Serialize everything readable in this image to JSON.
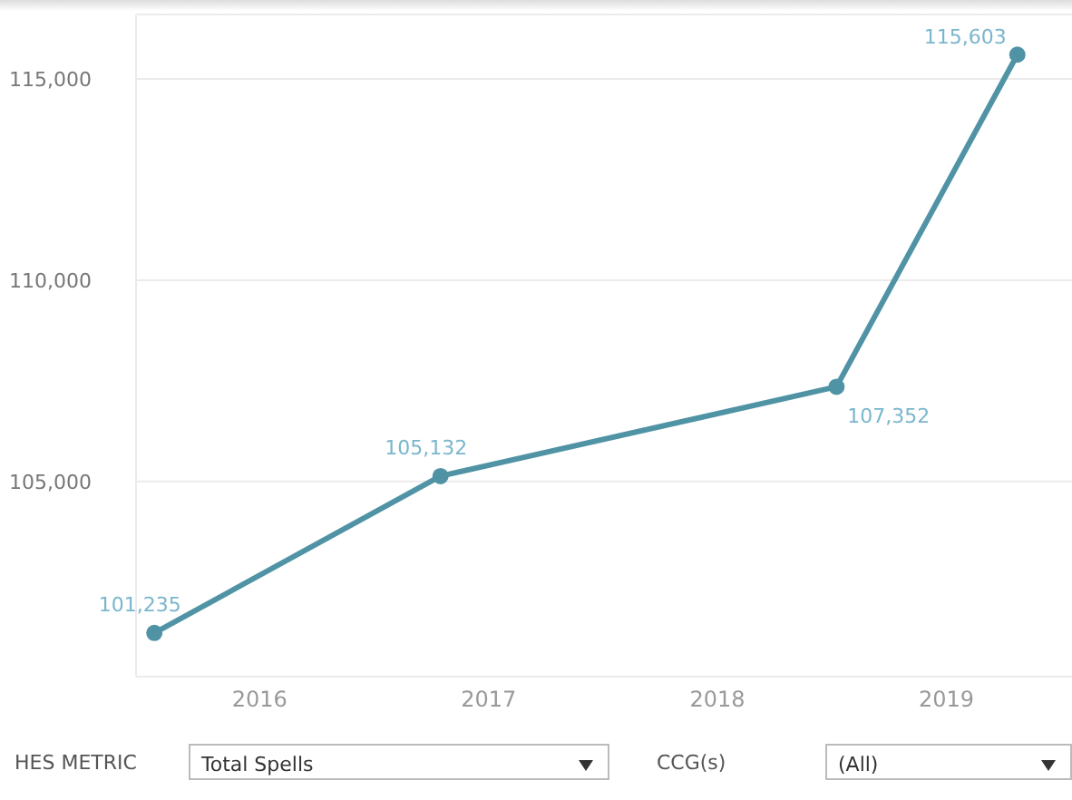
{
  "chart_data": {
    "type": "line",
    "x": [
      2015.54,
      2016.79,
      2018.52,
      2019.31
    ],
    "xlim": [
      2015.46,
      2019.62
    ],
    "xticks": [
      2016,
      2017,
      2018,
      2019
    ],
    "series": [
      {
        "color": "#4f93a5",
        "values": [
          101235,
          105132,
          107352,
          115603
        ],
        "value_labels": [
          "101,235",
          "105,132",
          "107,352",
          "115,603"
        ]
      }
    ],
    "ylim": [
      100150,
      116600
    ],
    "yticks": [
      {
        "value": 105000,
        "label": "105,000"
      },
      {
        "value": 110000,
        "label": "110,000"
      },
      {
        "value": 115000,
        "label": "115,000"
      }
    ],
    "grid": "y",
    "marker": "circle",
    "annotations": [
      "HES METRIC",
      "Total Spells",
      "CCG(s)",
      "(All)"
    ]
  }
}
